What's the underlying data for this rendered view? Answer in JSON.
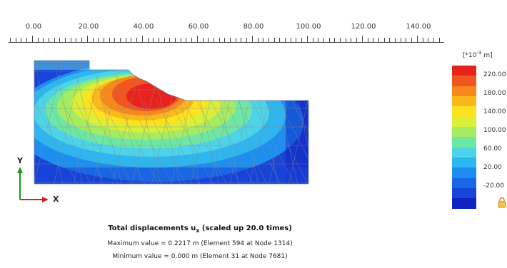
{
  "ruler": {
    "labels": [
      "0.00",
      "20.00",
      "40.00",
      "60.00",
      "80.00",
      "100.00",
      "120.00",
      "140.00"
    ]
  },
  "axes": {
    "y_label": "Y",
    "x_label": "X"
  },
  "legend": {
    "unit_prefix": "[*10",
    "unit_exp": "-3",
    "unit_suffix": " m]",
    "labels": [
      "220.00",
      "180.00",
      "140.00",
      "100.00",
      "60.00",
      "20.00",
      "-20.00"
    ],
    "colors": [
      "#e8231d",
      "#f0561e",
      "#f7881c",
      "#fab81a",
      "#fce21f",
      "#d9ef3a",
      "#a6ec62",
      "#6fe7a4",
      "#4dd4e8",
      "#2eb6f1",
      "#1c8ef0",
      "#1966e6",
      "#1844d8",
      "#0d24c0"
    ]
  },
  "caption": {
    "title_prefix": "Total displacements u",
    "title_sub": "x",
    "title_suffix": " (scaled up 20.0 times)",
    "max_line": "Maximum value = 0.2217 m (Element 594 at Node 1314)",
    "min_line": "Minimum value = 0.000 m (Element 31 at Node 7681)"
  },
  "colors": {
    "axis_y": "#1a9a1a",
    "axis_x": "#d42020",
    "mesh": "#8a8a8a"
  }
}
